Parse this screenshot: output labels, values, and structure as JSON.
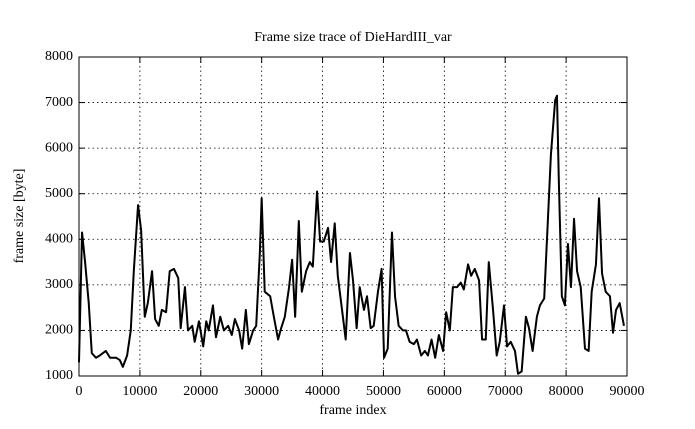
{
  "chart_data": {
    "type": "line",
    "title": "Frame size trace of DieHardIII_var",
    "x_label": "frame index",
    "y_label": "frame size [byte]",
    "xlim": [
      0,
      90000
    ],
    "ylim": [
      1000,
      8000
    ],
    "xticks": [
      0,
      10000,
      20000,
      30000,
      40000,
      50000,
      60000,
      70000,
      80000,
      90000
    ],
    "yticks": [
      1000,
      2000,
      3000,
      4000,
      5000,
      6000,
      7000,
      8000
    ],
    "grid": true,
    "series": [
      {
        "color": "#000000",
        "x": [
          0,
          500,
          1000,
          1600,
          2100,
          2800,
          3400,
          4400,
          5100,
          6100,
          6700,
          7200,
          7900,
          8500,
          9000,
          9700,
          10200,
          10800,
          11300,
          12000,
          12500,
          13100,
          13600,
          14300,
          14900,
          15600,
          16300,
          16700,
          17400,
          17900,
          18600,
          19000,
          19700,
          20400,
          20900,
          21300,
          22000,
          22500,
          23200,
          23800,
          24500,
          25100,
          25600,
          26300,
          26800,
          27400,
          27900,
          28600,
          29100,
          29700,
          30000,
          30500,
          31400,
          32000,
          32700,
          33200,
          33800,
          34500,
          35000,
          35500,
          36100,
          36600,
          37300,
          37900,
          38400,
          39100,
          39600,
          40200,
          40900,
          41400,
          42000,
          42500,
          43200,
          43800,
          44500,
          45000,
          45600,
          46100,
          46800,
          47300,
          47900,
          48400,
          49100,
          49700,
          50100,
          50700,
          51400,
          51900,
          52500,
          53200,
          53700,
          54300,
          55000,
          55500,
          56200,
          56800,
          57300,
          57900,
          58500,
          59100,
          59800,
          60300,
          60900,
          61400,
          62100,
          62700,
          63200,
          63900,
          64400,
          65000,
          65700,
          66200,
          66800,
          67300,
          68000,
          68600,
          69100,
          69800,
          70300,
          70900,
          71600,
          72100,
          72700,
          73400,
          73900,
          74500,
          75200,
          75700,
          76400,
          77000,
          77500,
          78200,
          78500,
          78800,
          79300,
          79800,
          80300,
          80800,
          81300,
          81800,
          82400,
          83100,
          83700,
          84200,
          84900,
          85400,
          85900,
          86500,
          87200,
          87700,
          88200,
          88800,
          89500
        ],
        "values": [
          1300,
          4150,
          3500,
          2600,
          1500,
          1400,
          1450,
          1550,
          1400,
          1400,
          1350,
          1200,
          1450,
          2000,
          3300,
          4750,
          4200,
          2300,
          2600,
          3300,
          2250,
          2100,
          2450,
          2400,
          3300,
          3350,
          3150,
          2050,
          2950,
          2000,
          2100,
          1750,
          2200,
          1650,
          2200,
          2000,
          2550,
          1850,
          2300,
          2000,
          2100,
          1900,
          2250,
          2000,
          1600,
          2450,
          1700,
          2000,
          2100,
          3700,
          4900,
          2850,
          2750,
          2300,
          1800,
          2050,
          2300,
          2950,
          3550,
          2300,
          4400,
          2850,
          3300,
          3500,
          3400,
          5050,
          3950,
          3950,
          4250,
          3500,
          4350,
          3200,
          2450,
          1800,
          3700,
          3100,
          2050,
          2950,
          2450,
          2750,
          2050,
          2100,
          2850,
          3350,
          1400,
          1600,
          4150,
          2750,
          2100,
          2000,
          2000,
          1750,
          1700,
          1800,
          1450,
          1550,
          1450,
          1800,
          1400,
          1900,
          1550,
          2400,
          2000,
          2950,
          2950,
          3050,
          2900,
          3450,
          3200,
          3350,
          3100,
          1800,
          1800,
          3500,
          2450,
          1450,
          1750,
          2550,
          1650,
          1750,
          1550,
          1050,
          1100,
          2300,
          2050,
          1550,
          2300,
          2550,
          2700,
          4400,
          5850,
          7050,
          7150,
          5300,
          2750,
          2550,
          3900,
          2950,
          4450,
          3300,
          2950,
          1600,
          1550,
          2850,
          3450,
          4900,
          3250,
          2850,
          2750,
          1950,
          2450,
          2600,
          2100
        ]
      }
    ]
  }
}
